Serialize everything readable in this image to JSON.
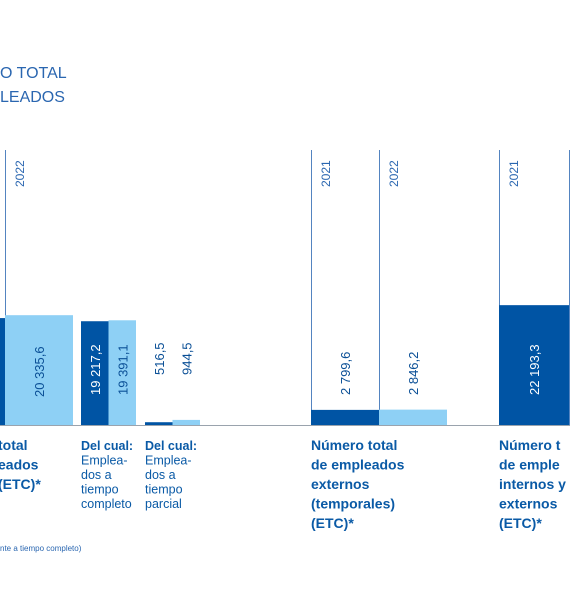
{
  "chart_data": {
    "type": "bar",
    "title": [
      "O TOTAL",
      "LEADOS"
    ],
    "categories": [
      [
        "total",
        "eados",
        "(ETC)*"
      ],
      [
        "Del cual:",
        "Emplea-",
        "dos a",
        "tiempo",
        "completo"
      ],
      [
        "Del cual:",
        "Emplea-",
        "dos a",
        "tiempo",
        "parcial"
      ],
      [
        "Número total",
        "de empleados",
        "externos",
        "(temporales)",
        "(ETC)*"
      ],
      [
        "Número t",
        "de emple",
        "internos y",
        "externos",
        "(ETC)*"
      ]
    ],
    "series": [
      {
        "name": "2021",
        "color": "#0054a4",
        "values": [
          19800,
          19217.2,
          516.5,
          2799.6,
          22193.3
        ],
        "value_labels": [
          null,
          "19 217,2",
          "516,5",
          "2 799,6",
          "22 193,3"
        ]
      },
      {
        "name": "2022",
        "color": "#8ed0f5",
        "values": [
          20335.6,
          19391.1,
          944.5,
          2846.2,
          null
        ],
        "value_labels": [
          "20 335,6",
          "19 391,1",
          "944,5",
          "2 846,2",
          null
        ]
      }
    ],
    "footnote": "nte a tiempo completo)"
  }
}
